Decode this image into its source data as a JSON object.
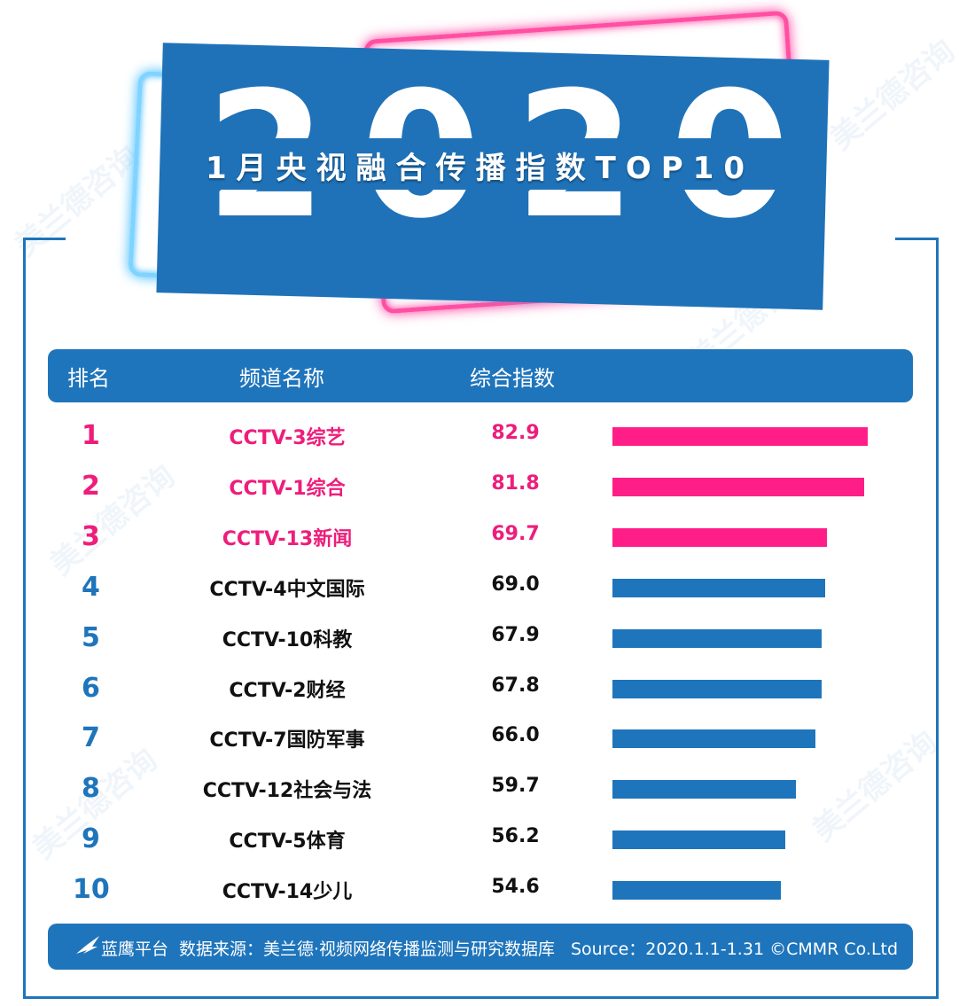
{
  "banner": {
    "year": "2020",
    "title": "1月央视融合传播指数TOP10"
  },
  "header": {
    "col_rank": "排名",
    "col_channel": "频道名称",
    "col_score": "综合指数"
  },
  "watermark": {
    "text": "美兰德咨询"
  },
  "colors": {
    "blue": "#1f75bb",
    "pink": "#ff1e87",
    "pink_text": "#ee1d7b"
  },
  "chart_data": {
    "type": "bar",
    "orientation": "horizontal",
    "title": "1月央视融合传播指数TOP10",
    "ranks": [
      "1",
      "2",
      "3",
      "4",
      "5",
      "6",
      "7",
      "8",
      "9",
      "10"
    ],
    "categories": [
      "CCTV-3综艺",
      "CCTV-1综合",
      "CCTV-13新闻",
      "CCTV-4中文国际",
      "CCTV-10科教",
      "CCTV-2财经",
      "CCTV-7国防军事",
      "CCTV-12社会与法",
      "CCTV-5体育",
      "CCTV-14少儿"
    ],
    "values": [
      "82.9",
      "81.8",
      "69.7",
      "69.0",
      "67.9",
      "67.8",
      "66.0",
      "59.7",
      "56.2",
      "54.6"
    ],
    "highlight_top": 3,
    "xlim": [
      0,
      82.9
    ]
  },
  "footer": {
    "platform": "蓝鹰平台",
    "source_cn": "数据来源：美兰德·视频网络传播监测与研究数据库",
    "source_en": "Source：2020.1.1-1.31  ©CMMR Co.Ltd"
  }
}
